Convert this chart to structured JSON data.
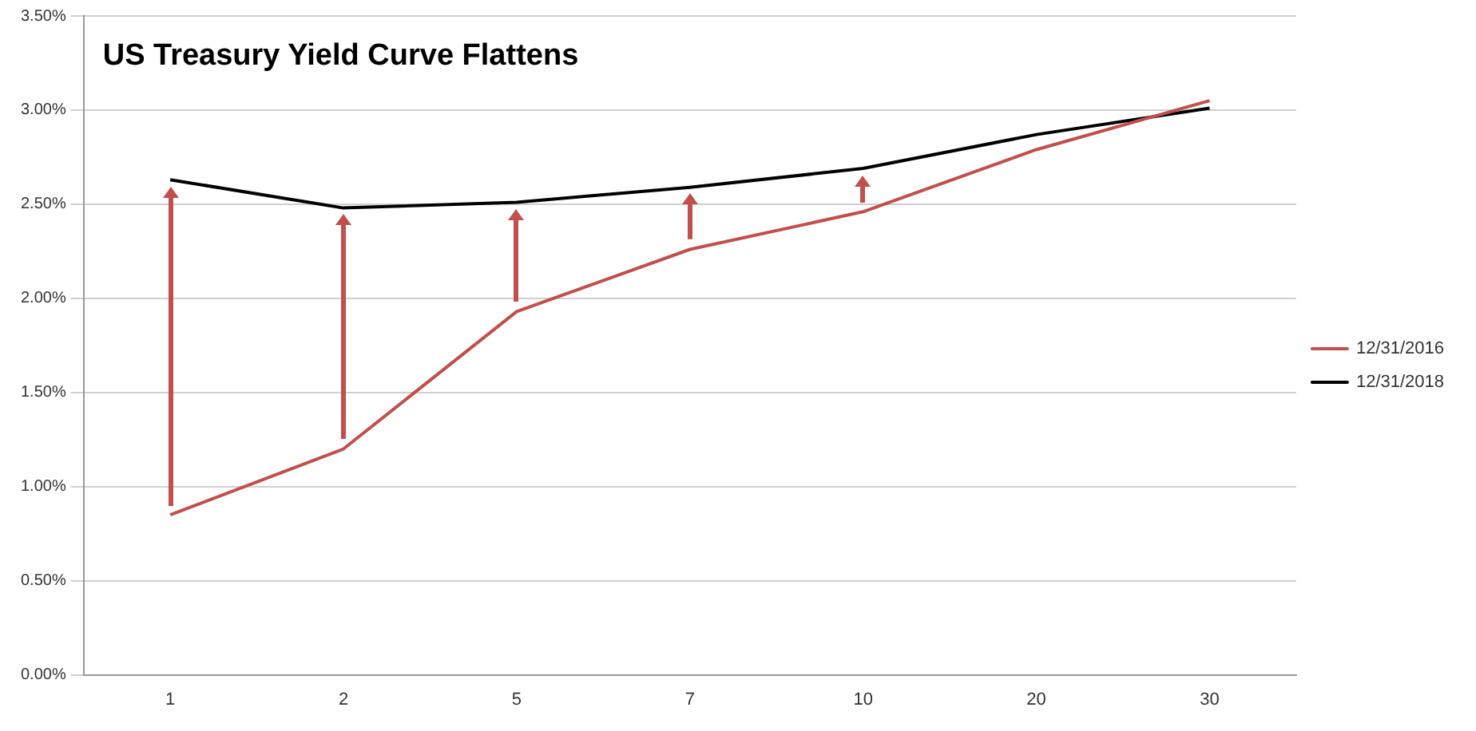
{
  "chart_data": {
    "type": "line",
    "title": "US Treasury Yield Curve Flattens",
    "categories": [
      "1",
      "2",
      "5",
      "7",
      "10",
      "20",
      "30"
    ],
    "series": [
      {
        "name": "12/31/2016",
        "color": "#c0504d",
        "values": [
          0.85,
          1.2,
          1.93,
          2.26,
          2.46,
          2.79,
          3.05
        ]
      },
      {
        "name": "12/31/2018",
        "color": "#000000",
        "values": [
          2.63,
          2.48,
          2.51,
          2.59,
          2.69,
          2.87,
          3.01
        ]
      }
    ],
    "ylim": [
      0,
      3.5
    ],
    "yticks": [
      {
        "value": 0,
        "label": "0.00%"
      },
      {
        "value": 0.5,
        "label": "0.50%"
      },
      {
        "value": 1,
        "label": "1.00%"
      },
      {
        "value": 1.5,
        "label": "1.50%"
      },
      {
        "value": 2,
        "label": "2.00%"
      },
      {
        "value": 2.5,
        "label": "2.50%"
      },
      {
        "value": 3,
        "label": "3.00%"
      },
      {
        "value": 3.5,
        "label": "3.50%"
      }
    ],
    "grid": "y",
    "legend": "right",
    "marker": "none",
    "line_style": "solid"
  }
}
